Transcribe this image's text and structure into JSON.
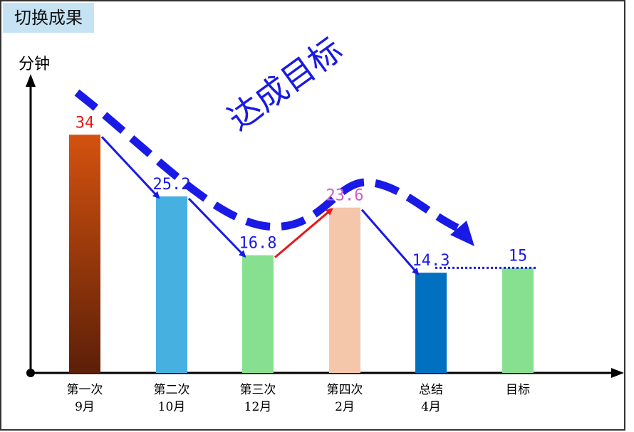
{
  "tag_label": "切换成果",
  "slogan": "达成目标",
  "colors": {
    "accent_blue": "#1a1ae6",
    "trend_red": "#e81717"
  },
  "chart_data": {
    "type": "bar",
    "title": "",
    "ylabel": "分钟",
    "ylim": [
      0,
      45
    ],
    "categories": [
      [
        "第一次",
        "9月"
      ],
      [
        "第二次",
        "10月"
      ],
      [
        "第三次",
        "12月"
      ],
      [
        "第四次",
        "2月"
      ],
      [
        "总结",
        "4月"
      ],
      [
        "目标"
      ]
    ],
    "values": [
      34,
      25.2,
      16.8,
      23.6,
      14.3,
      15
    ],
    "value_labels": [
      "34",
      "25.2",
      "16.8",
      "23.6",
      "14.3",
      "15"
    ],
    "bar_colors": [
      [
        "#d4520f",
        "#5c1f08"
      ],
      [
        "#46b0e0",
        "#46b0e0"
      ],
      [
        "#87e08f",
        "#87e08f"
      ],
      [
        "#f4c6aa",
        "#f4c6aa"
      ],
      [
        "#0070c0",
        "#0070c0"
      ],
      [
        "#87e08f",
        "#87e08f"
      ]
    ],
    "label_colors": [
      "#e81717",
      "#1a1ae6",
      "#1a1ae6",
      "#d25ad2",
      "#1a1ae6",
      "#1a1ae6"
    ],
    "trend_colors": [
      "#1a1ae6",
      "#1a1ae6",
      "#e81717",
      "#1a1ae6"
    ],
    "target_line": {
      "from_index": 4,
      "to_index": 5,
      "value": 15,
      "style": "dotted"
    }
  }
}
